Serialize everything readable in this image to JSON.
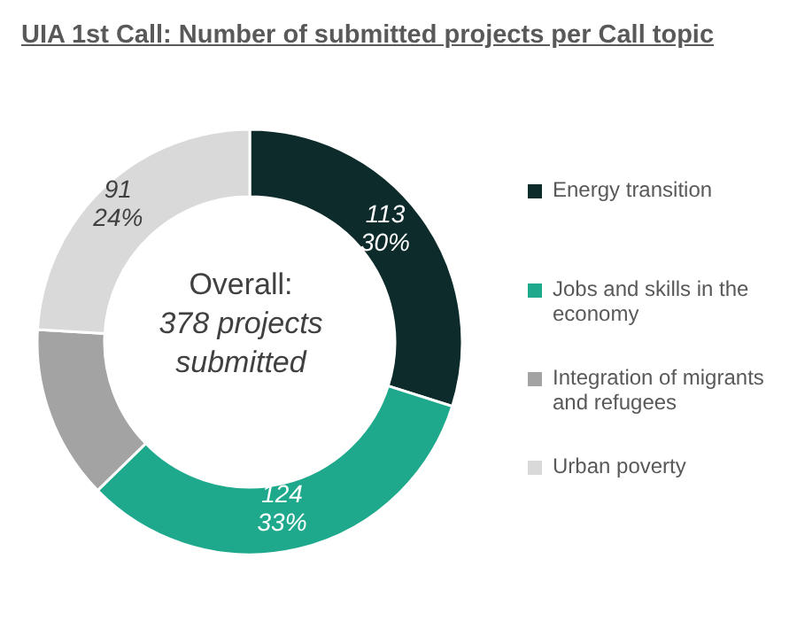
{
  "chart_data": {
    "type": "donut",
    "title": "UIA 1st Call: Number of submitted projects per Call topic",
    "categories": [
      "Energy transition",
      "Jobs and skills in the economy",
      "Integration of migrants and refugees",
      "Urban poverty"
    ],
    "values": [
      113,
      124,
      50,
      91
    ],
    "colors": [
      "#0e2b2c",
      "#1ea98d",
      "#a3a3a3",
      "#d9d9d9"
    ],
    "value_labels": [
      "113\n30%",
      "124\n33%",
      null,
      "91\n24%"
    ],
    "annotations": [
      "Overall:",
      "378 projects submitted"
    ],
    "legend": "right"
  }
}
